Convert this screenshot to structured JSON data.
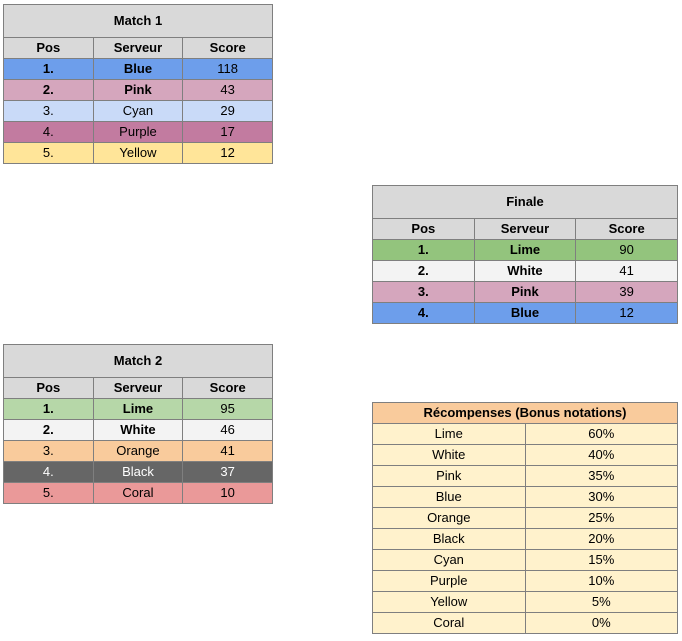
{
  "match1": {
    "title": "Match 1",
    "headers": [
      "Pos",
      "Serveur",
      "Score"
    ],
    "rows": [
      {
        "pos": "1.",
        "server": "Blue",
        "score": "118"
      },
      {
        "pos": "2.",
        "server": "Pink",
        "score": "43"
      },
      {
        "pos": "3.",
        "server": "Cyan",
        "score": "29"
      },
      {
        "pos": "4.",
        "server": "Purple",
        "score": "17"
      },
      {
        "pos": "5.",
        "server": "Yellow",
        "score": "12"
      }
    ]
  },
  "finale": {
    "title": "Finale",
    "headers": [
      "Pos",
      "Serveur",
      "Score"
    ],
    "rows": [
      {
        "pos": "1.",
        "server": "Lime",
        "score": "90"
      },
      {
        "pos": "2.",
        "server": "White",
        "score": "41"
      },
      {
        "pos": "3.",
        "server": "Pink",
        "score": "39"
      },
      {
        "pos": "4.",
        "server": "Blue",
        "score": "12"
      }
    ]
  },
  "match2": {
    "title": "Match 2",
    "headers": [
      "Pos",
      "Serveur",
      "Score"
    ],
    "rows": [
      {
        "pos": "1.",
        "server": "Lime",
        "score": "95"
      },
      {
        "pos": "2.",
        "server": "White",
        "score": "46"
      },
      {
        "pos": "3.",
        "server": "Orange",
        "score": "41"
      },
      {
        "pos": "4.",
        "server": "Black",
        "score": "37"
      },
      {
        "pos": "5.",
        "server": "Coral",
        "score": "10"
      }
    ]
  },
  "rewards": {
    "title": "Récompenses (Bonus notations)",
    "rows": [
      {
        "server": "Lime",
        "bonus": "60%"
      },
      {
        "server": "White",
        "bonus": "40%"
      },
      {
        "server": "Pink",
        "bonus": "35%"
      },
      {
        "server": "Blue",
        "bonus": "30%"
      },
      {
        "server": "Orange",
        "bonus": "25%"
      },
      {
        "server": "Black",
        "bonus": "20%"
      },
      {
        "server": "Cyan",
        "bonus": "15%"
      },
      {
        "server": "Purple",
        "bonus": "10%"
      },
      {
        "server": "Yellow",
        "bonus": "5%"
      },
      {
        "server": "Coral",
        "bonus": "0%"
      }
    ]
  },
  "colors": {
    "header_gray": "#d9d9d9",
    "blue": "#6d9eeb",
    "pink": "#d5a6bd",
    "cyan": "#c9daf8",
    "purple": "#c27ba0",
    "yellow": "#ffe599",
    "lime": "#b6d7a8",
    "lime_final": "#93c47d",
    "white": "#f3f3f3",
    "orange": "#f9cb9c",
    "black": "#666666",
    "coral": "#ea9999",
    "rewards_bg": "#fff2cc"
  }
}
